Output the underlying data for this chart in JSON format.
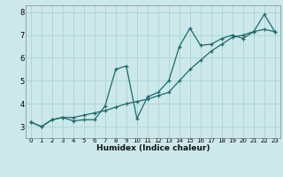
{
  "xlabel": "Humidex (Indice chaleur)",
  "ylabel": "",
  "bg_color": "#cce8ea",
  "line_color": "#1a6b6b",
  "grid_color": "#aad4d4",
  "xlim": [
    -0.5,
    23.5
  ],
  "ylim": [
    2.5,
    8.3
  ],
  "xticks": [
    0,
    1,
    2,
    3,
    4,
    5,
    6,
    7,
    8,
    9,
    10,
    11,
    12,
    13,
    14,
    15,
    16,
    17,
    18,
    19,
    20,
    21,
    22,
    23
  ],
  "yticks": [
    3,
    4,
    5,
    6,
    7,
    8
  ],
  "line1_x": [
    0,
    1,
    2,
    3,
    4,
    5,
    6,
    7,
    8,
    9,
    10,
    11,
    12,
    13,
    14,
    15,
    16,
    17,
    18,
    19,
    20,
    21,
    22,
    23
  ],
  "line1_y": [
    3.2,
    3.0,
    3.3,
    3.4,
    3.25,
    3.3,
    3.3,
    3.9,
    5.5,
    5.65,
    3.35,
    4.3,
    4.5,
    5.0,
    6.5,
    7.3,
    6.55,
    6.6,
    6.85,
    7.0,
    6.85,
    7.15,
    7.25,
    7.15
  ],
  "line2_x": [
    0,
    1,
    2,
    3,
    4,
    5,
    6,
    7,
    8,
    9,
    10,
    11,
    12,
    13,
    14,
    15,
    16,
    17,
    18,
    19,
    20,
    21,
    22,
    23
  ],
  "line2_y": [
    3.2,
    3.0,
    3.3,
    3.4,
    3.4,
    3.5,
    3.6,
    3.7,
    3.85,
    4.0,
    4.1,
    4.2,
    4.35,
    4.5,
    5.0,
    5.5,
    5.9,
    6.3,
    6.6,
    6.9,
    7.0,
    7.15,
    7.9,
    7.15
  ]
}
